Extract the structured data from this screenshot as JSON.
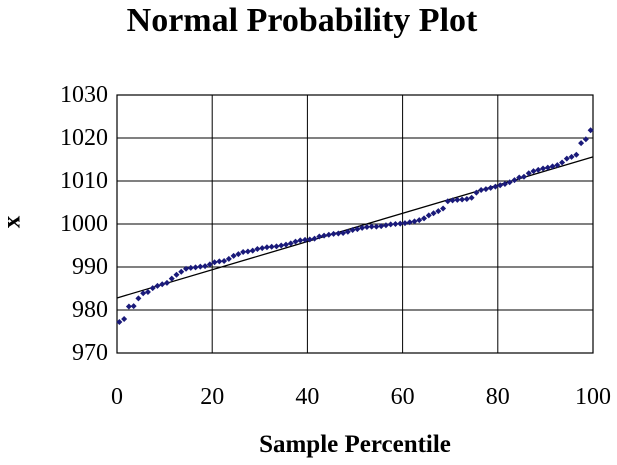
{
  "chart_data": {
    "type": "scatter",
    "title": "Normal Probability Plot",
    "xlabel": "Sample Percentile",
    "ylabel": "x",
    "xlim": [
      0,
      100
    ],
    "ylim": [
      970,
      1030
    ],
    "x_ticks": [
      "0",
      "20",
      "40",
      "60",
      "80",
      "100"
    ],
    "y_ticks": [
      "970",
      "980",
      "990",
      "1000",
      "1010",
      "1020",
      "1030"
    ],
    "grid": true,
    "legend": "none",
    "marker_color": "#1a1a7a",
    "line_color": "#000000",
    "series": [
      {
        "points": [
          [
            0.5,
            977.2
          ],
          [
            1.5,
            977.9
          ],
          [
            2.5,
            980.8
          ],
          [
            3.5,
            980.9
          ],
          [
            4.5,
            982.7
          ],
          [
            5.5,
            983.9
          ],
          [
            6.5,
            984.2
          ],
          [
            7.5,
            985.1
          ],
          [
            8.5,
            985.6
          ],
          [
            9.5,
            986.0
          ],
          [
            10.5,
            986.3
          ],
          [
            11.5,
            987.3
          ],
          [
            12.5,
            988.2
          ],
          [
            13.5,
            988.9
          ],
          [
            14.5,
            989.6
          ],
          [
            15.5,
            989.8
          ],
          [
            16.5,
            989.9
          ],
          [
            17.5,
            990.1
          ],
          [
            18.5,
            990.2
          ],
          [
            19.5,
            990.6
          ],
          [
            20.5,
            991.1
          ],
          [
            21.5,
            991.3
          ],
          [
            22.5,
            991.4
          ],
          [
            23.5,
            991.9
          ],
          [
            24.5,
            992.6
          ],
          [
            25.5,
            993.0
          ],
          [
            26.5,
            993.5
          ],
          [
            27.5,
            993.6
          ],
          [
            28.5,
            993.8
          ],
          [
            29.5,
            994.2
          ],
          [
            30.5,
            994.4
          ],
          [
            31.5,
            994.6
          ],
          [
            32.5,
            994.7
          ],
          [
            33.5,
            994.8
          ],
          [
            34.5,
            995.0
          ],
          [
            35.5,
            995.2
          ],
          [
            36.5,
            995.5
          ],
          [
            37.5,
            995.9
          ],
          [
            38.5,
            996.2
          ],
          [
            39.5,
            996.3
          ],
          [
            40.5,
            996.4
          ],
          [
            41.5,
            996.6
          ],
          [
            42.5,
            997.1
          ],
          [
            43.5,
            997.3
          ],
          [
            44.5,
            997.5
          ],
          [
            45.5,
            997.7
          ],
          [
            46.5,
            997.8
          ],
          [
            47.5,
            997.9
          ],
          [
            48.5,
            998.2
          ],
          [
            49.5,
            998.6
          ],
          [
            50.5,
            998.8
          ],
          [
            51.5,
            999.1
          ],
          [
            52.5,
            999.3
          ],
          [
            53.5,
            999.4
          ],
          [
            54.5,
            999.4
          ],
          [
            55.5,
            999.5
          ],
          [
            56.5,
            999.7
          ],
          [
            57.5,
            999.9
          ],
          [
            58.5,
            1000.0
          ],
          [
            59.5,
            1000.1
          ],
          [
            60.5,
            1000.2
          ],
          [
            61.5,
            1000.4
          ],
          [
            62.5,
            1000.6
          ],
          [
            63.5,
            1000.9
          ],
          [
            64.5,
            1001.3
          ],
          [
            65.5,
            1002.0
          ],
          [
            66.5,
            1002.5
          ],
          [
            67.5,
            1003.0
          ],
          [
            68.5,
            1003.6
          ],
          [
            69.5,
            1005.3
          ],
          [
            70.5,
            1005.5
          ],
          [
            71.5,
            1005.6
          ],
          [
            72.5,
            1005.7
          ],
          [
            73.5,
            1005.8
          ],
          [
            74.5,
            1006.1
          ],
          [
            75.5,
            1007.3
          ],
          [
            76.5,
            1007.9
          ],
          [
            77.5,
            1008.1
          ],
          [
            78.5,
            1008.4
          ],
          [
            79.5,
            1008.7
          ],
          [
            80.5,
            1009.0
          ],
          [
            81.5,
            1009.3
          ],
          [
            82.5,
            1009.7
          ],
          [
            83.5,
            1010.2
          ],
          [
            84.5,
            1010.8
          ],
          [
            85.5,
            1011.0
          ],
          [
            86.5,
            1011.8
          ],
          [
            87.5,
            1012.3
          ],
          [
            88.5,
            1012.6
          ],
          [
            89.5,
            1012.9
          ],
          [
            90.5,
            1013.1
          ],
          [
            91.5,
            1013.4
          ],
          [
            92.5,
            1013.7
          ],
          [
            93.5,
            1014.3
          ],
          [
            94.5,
            1015.2
          ],
          [
            95.5,
            1015.6
          ],
          [
            96.5,
            1016.1
          ],
          [
            97.5,
            1018.8
          ],
          [
            98.5,
            1019.7
          ],
          [
            99.5,
            1021.8
          ]
        ]
      }
    ],
    "trendline": {
      "x": [
        0,
        100
      ],
      "y": [
        982.8,
        1015.6
      ]
    }
  }
}
